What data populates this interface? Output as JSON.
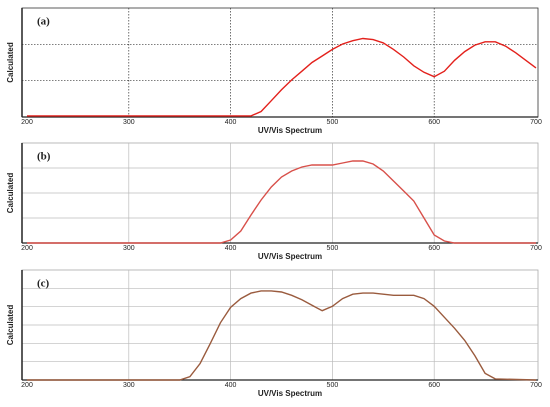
{
  "chart_data": [
    {
      "type": "line",
      "title": "(a)",
      "x_label": "UV/Vis Spectrum",
      "y_label": "Calculated",
      "x": [
        200,
        300,
        400,
        420,
        430,
        440,
        450,
        460,
        470,
        480,
        490,
        500,
        510,
        520,
        530,
        540,
        550,
        560,
        570,
        580,
        590,
        600,
        610,
        620,
        630,
        640,
        650,
        660,
        670,
        680,
        690,
        700
      ],
      "series": [
        {
          "color": "#e3211c",
          "values": [
            0.01,
            0.01,
            0.01,
            0.01,
            0.05,
            0.15,
            0.25,
            0.34,
            0.42,
            0.5,
            0.56,
            0.62,
            0.67,
            0.7,
            0.72,
            0.71,
            0.68,
            0.62,
            0.55,
            0.47,
            0.41,
            0.37,
            0.42,
            0.52,
            0.6,
            0.66,
            0.69,
            0.69,
            0.65,
            0.59,
            0.52,
            0.45
          ]
        }
      ],
      "xlim": [
        200,
        700
      ],
      "xticks": [
        200,
        300,
        400,
        500,
        600,
        700
      ],
      "ylim": [
        0,
        1
      ],
      "grid": "dotted"
    },
    {
      "type": "line",
      "title": "(b)",
      "x_label": "UV/Vis Spectrum",
      "y_label": "Calculated",
      "x": [
        200,
        300,
        390,
        400,
        410,
        420,
        430,
        440,
        450,
        460,
        470,
        480,
        490,
        500,
        510,
        520,
        530,
        540,
        550,
        560,
        570,
        580,
        590,
        600,
        610,
        620,
        700
      ],
      "series": [
        {
          "color": "#d8504a",
          "values": [
            0,
            0,
            0,
            0.03,
            0.12,
            0.28,
            0.43,
            0.56,
            0.66,
            0.72,
            0.76,
            0.78,
            0.78,
            0.78,
            0.8,
            0.82,
            0.82,
            0.79,
            0.72,
            0.62,
            0.52,
            0.42,
            0.25,
            0.08,
            0.02,
            0,
            0
          ]
        }
      ],
      "xlim": [
        200,
        700
      ],
      "xticks": [
        200,
        300,
        400,
        500,
        600,
        700
      ],
      "ylim": [
        0,
        1
      ],
      "grid": "solid"
    },
    {
      "type": "line",
      "title": "(c)",
      "x_label": "UV/Vis Spectrum",
      "y_label": "Calculated",
      "x": [
        200,
        300,
        350,
        360,
        370,
        380,
        390,
        400,
        410,
        420,
        430,
        440,
        450,
        460,
        470,
        480,
        490,
        500,
        510,
        520,
        530,
        540,
        550,
        560,
        570,
        580,
        590,
        600,
        610,
        620,
        630,
        640,
        650,
        660,
        700
      ],
      "series": [
        {
          "color": "#9a5b3e",
          "values": [
            0,
            0,
            0,
            0.03,
            0.15,
            0.33,
            0.52,
            0.66,
            0.74,
            0.79,
            0.81,
            0.81,
            0.8,
            0.77,
            0.73,
            0.68,
            0.63,
            0.67,
            0.74,
            0.78,
            0.79,
            0.79,
            0.78,
            0.77,
            0.77,
            0.77,
            0.74,
            0.67,
            0.57,
            0.47,
            0.36,
            0.22,
            0.06,
            0.01,
            0
          ]
        }
      ],
      "xlim": [
        200,
        700
      ],
      "xticks": [
        200,
        300,
        400,
        500,
        600,
        700
      ],
      "ylim": [
        0,
        1
      ],
      "grid": "solid"
    }
  ]
}
